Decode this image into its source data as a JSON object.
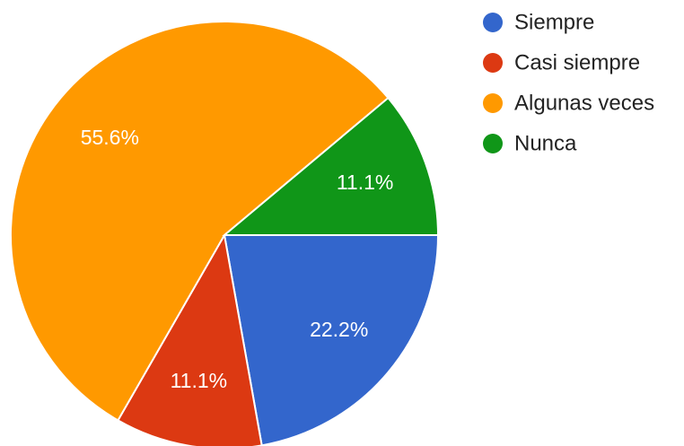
{
  "chart_data": {
    "type": "pie",
    "categories": [
      "Siempre",
      "Casi siempre",
      "Algunas veces",
      "Nunca"
    ],
    "values": [
      22.2,
      11.1,
      55.6,
      11.1
    ],
    "value_labels": [
      "22.2%",
      "11.1%",
      "55.6%",
      "11.1%"
    ],
    "colors": [
      "#3366cc",
      "#dc3912",
      "#ff9900",
      "#109618"
    ],
    "legend": "right"
  }
}
